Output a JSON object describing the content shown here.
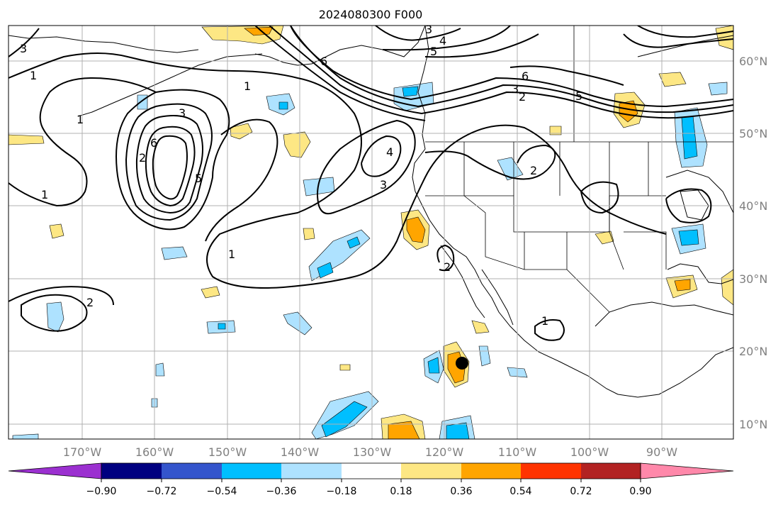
{
  "title": "2024080300 F000",
  "lon_labels": [
    "170°W",
    "160°W",
    "150°W",
    "140°W",
    "130°W",
    "120°W",
    "110°W",
    "100°W",
    "90°W"
  ],
  "lat_labels": [
    "60°N",
    "50°N",
    "40°N",
    "30°N",
    "20°N",
    "10°N"
  ],
  "colorbar": {
    "tick_labels": [
      "−0.90",
      "−0.72",
      "−0.54",
      "−0.36",
      "−0.18",
      "0.18",
      "0.36",
      "0.54",
      "0.72",
      "0.90"
    ],
    "colors": [
      "#9b30d0",
      "#000080",
      "#3455cc",
      "#00bfff",
      "#aee2ff",
      "#ffffff",
      "#fde784",
      "#ffa500",
      "#ff3300",
      "#b22222",
      "#ff88aa"
    ]
  },
  "contour_labels": [
    {
      "id": "c1",
      "text": "1"
    },
    {
      "id": "c2",
      "text": "1"
    },
    {
      "id": "c3",
      "text": "1"
    },
    {
      "id": "c4",
      "text": "1"
    },
    {
      "id": "c5",
      "text": "1"
    },
    {
      "id": "c6",
      "text": "3"
    },
    {
      "id": "c7",
      "text": "6"
    },
    {
      "id": "c8",
      "text": "5"
    },
    {
      "id": "c9",
      "text": "2"
    },
    {
      "id": "c10",
      "text": "3"
    },
    {
      "id": "c11",
      "text": "4"
    },
    {
      "id": "c12",
      "text": "3"
    },
    {
      "id": "c13",
      "text": "6"
    },
    {
      "id": "c14",
      "text": "3"
    },
    {
      "id": "c15",
      "text": "4"
    },
    {
      "id": "c16",
      "text": "5"
    },
    {
      "id": "c17",
      "text": "6"
    },
    {
      "id": "c18",
      "text": "2"
    },
    {
      "id": "c19",
      "text": "3"
    },
    {
      "id": "c20",
      "text": "5"
    },
    {
      "id": "c21",
      "text": "2"
    },
    {
      "id": "c22",
      "text": "2"
    },
    {
      "id": "c23",
      "text": "1"
    },
    {
      "id": "c24",
      "text": "2"
    }
  ]
}
